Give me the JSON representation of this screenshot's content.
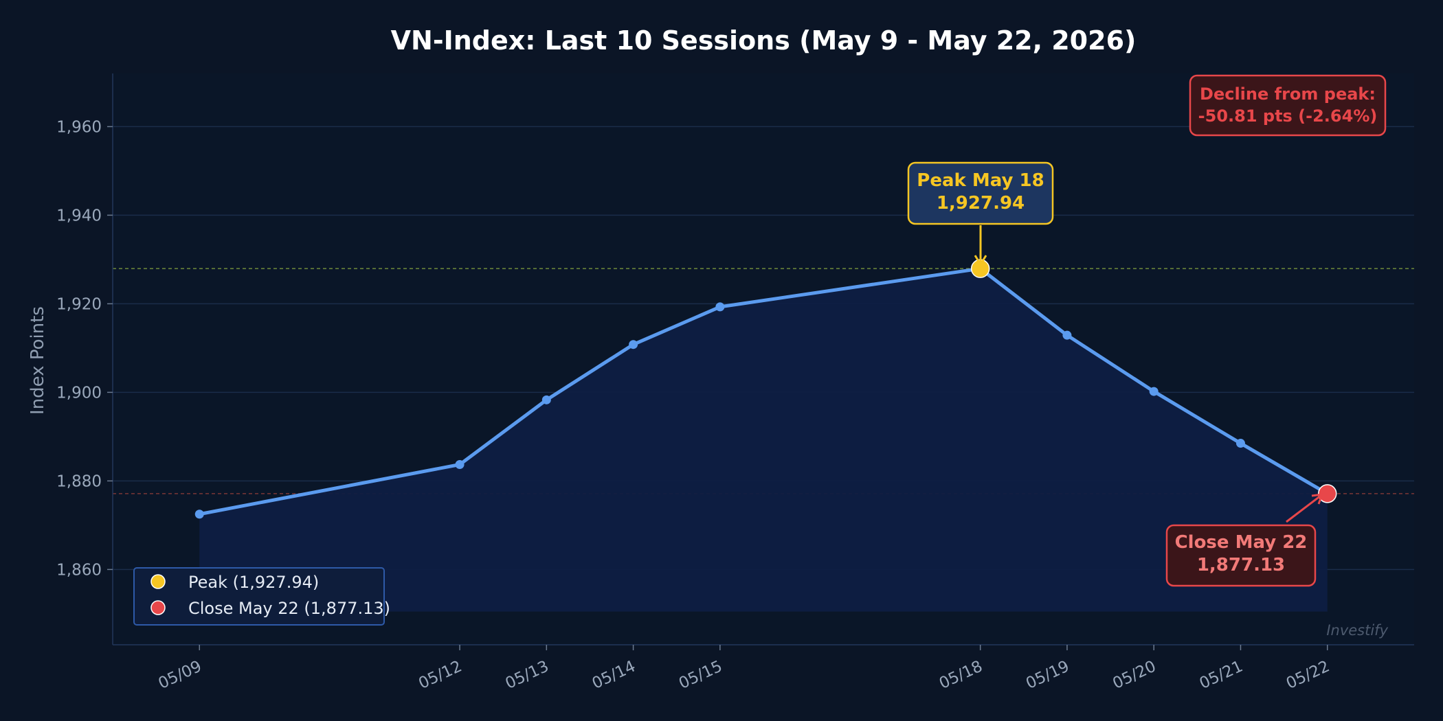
{
  "chart_data": {
    "type": "line",
    "title": "VN-Index: Last 10 Sessions (May 9 - May 22, 2026)",
    "xlabel": "",
    "ylabel": "Index Points",
    "x": [
      "05/09",
      "05/12",
      "05/13",
      "05/14",
      "05/15",
      "05/18",
      "05/19",
      "05/20",
      "05/21",
      "05/22"
    ],
    "x_dates": [
      "2026-05-09",
      "2026-05-12",
      "2026-05-13",
      "2026-05-14",
      "2026-05-15",
      "2026-05-18",
      "2026-05-19",
      "2026-05-20",
      "2026-05-21",
      "2026-05-22"
    ],
    "series": [
      {
        "name": "",
        "values": [
          1872.5,
          1883.7,
          1898.3,
          1910.8,
          1919.3,
          1927.94,
          1912.9,
          1900.2,
          1888.5,
          1877.13
        ],
        "color": "#5b9bef"
      }
    ],
    "ylim": [
      1843,
      1972
    ],
    "yticks": [
      1860,
      1880,
      1900,
      1920,
      1940,
      1960
    ],
    "ytick_labels": [
      "1,860",
      "1,880",
      "1,900",
      "1,920",
      "1,940",
      "1,960"
    ],
    "xlim": [
      "2026-05-08",
      "2026-05-23"
    ],
    "grid": true,
    "area_fill": true,
    "reference_lines": [
      {
        "value": 1927.94,
        "color": "#6f8a3a"
      },
      {
        "value": 1877.13,
        "color": "#7a3636"
      }
    ],
    "peak": {
      "label": "Peak May 18",
      "value_text": "1,927.94",
      "date": "2026-05-18",
      "value": 1927.94,
      "color": "#f6c623"
    },
    "close": {
      "label": "Close May 22",
      "value_text": "1,877.13",
      "date": "2026-05-22",
      "value": 1877.13,
      "color": "#e8474a"
    },
    "decline": {
      "line1": "Decline from peak:",
      "line2": "-50.81 pts  (-2.64%)"
    },
    "legend": {
      "position": "lower-left",
      "entries": [
        {
          "label": "Peak (1,927.94)",
          "color": "#f6c623"
        },
        {
          "label": "Close May 22 (1,877.13)",
          "color": "#e8474a"
        }
      ]
    },
    "watermark": "Investify"
  },
  "colors": {
    "background": "#0b1526",
    "plot_background": "#0a1628",
    "grid": "#1a2d4a",
    "line": "#5b9bef",
    "area": "#0e1d42"
  }
}
